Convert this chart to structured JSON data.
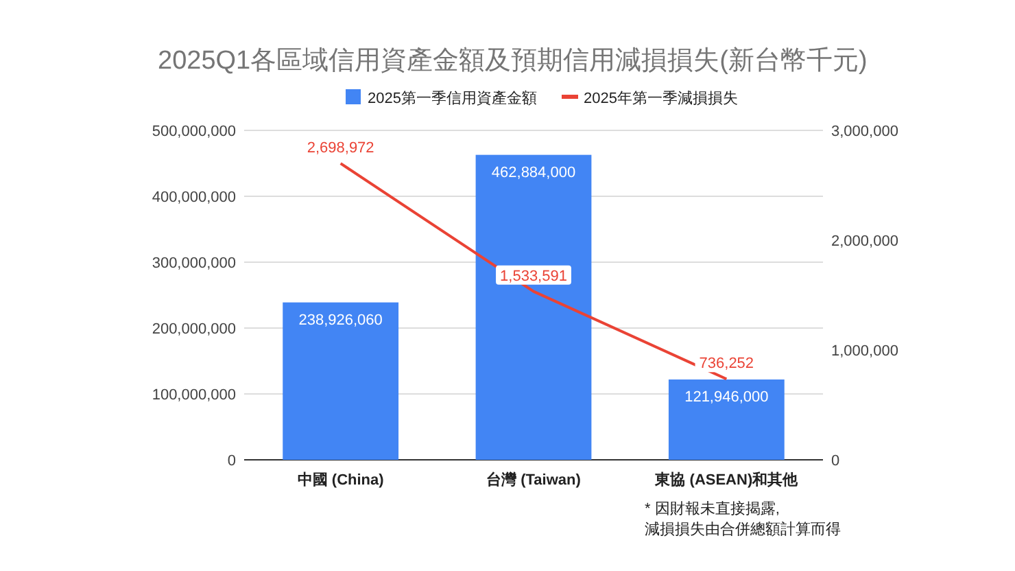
{
  "chart_data": {
    "type": "bar",
    "title": "2025Q1各區域信用資產金額及預期信用減損損失(新台幣千元)",
    "categories": [
      "中國 (China)",
      "台灣 (Taiwan)",
      "東協 (ASEAN)和其他"
    ],
    "series": [
      {
        "name": "2025第一季信用資產金額",
        "color": "#4285f4",
        "values": [
          238926060,
          462884000,
          121946000
        ],
        "value_labels": [
          "238,926,060",
          "462,884,000",
          "121,946,000"
        ]
      },
      {
        "name": "2025年第一季減損損失",
        "type": "line",
        "axis": "y2",
        "color": "#ea4335",
        "values": [
          2698972,
          1533591,
          736252
        ],
        "value_labels": [
          "2,698,972",
          "1,533,591",
          "736,252"
        ]
      }
    ],
    "ylim": [
      0,
      500000000
    ],
    "yticks": [
      {
        "value": 0,
        "label": "0"
      },
      {
        "value": 100000000,
        "label": "100,000,000"
      },
      {
        "value": 200000000,
        "label": "200,000,000"
      },
      {
        "value": 300000000,
        "label": "300,000,000"
      },
      {
        "value": 400000000,
        "label": "400,000,000"
      },
      {
        "value": 500000000,
        "label": "500,000,000"
      }
    ],
    "y2lim": [
      0,
      3000000
    ],
    "y2ticks": [
      {
        "value": 0,
        "label": "0"
      },
      {
        "value": 1000000,
        "label": "1,000,000"
      },
      {
        "value": 2000000,
        "label": "2,000,000"
      },
      {
        "value": 3000000,
        "label": "3,000,000"
      }
    ],
    "grid": "y",
    "legend": "top",
    "annotations": [
      "* 因財報未直接揭露,\n減損損失由合併總額計算而得"
    ]
  }
}
